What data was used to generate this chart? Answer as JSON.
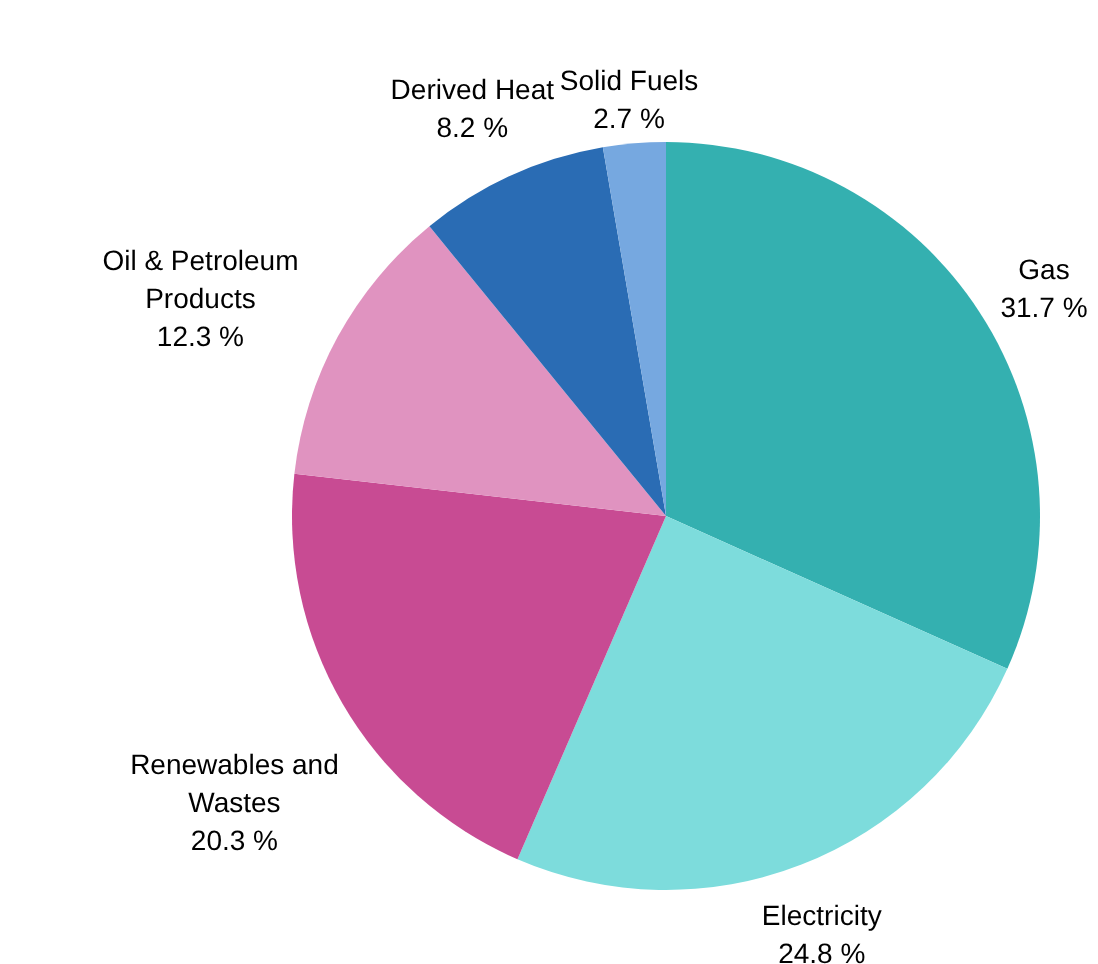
{
  "chart_data": {
    "type": "pie",
    "categories": [
      "Gas",
      "Electricity",
      "Renewables and Wastes",
      "Oil & Petroleum Products",
      "Derived Heat",
      "Solid Fuels"
    ],
    "values": [
      31.7,
      24.8,
      20.3,
      12.3,
      8.2,
      2.7
    ],
    "colors": [
      "#34b0b0",
      "#7ddcdc",
      "#c84b93",
      "#e093c0",
      "#2a6cb4",
      "#76a8e0"
    ],
    "value_labels": [
      "31.7 %",
      "24.8 %",
      "20.3 %",
      "12.3 %",
      "8.2 %",
      "2.7 %"
    ],
    "legend": false
  }
}
